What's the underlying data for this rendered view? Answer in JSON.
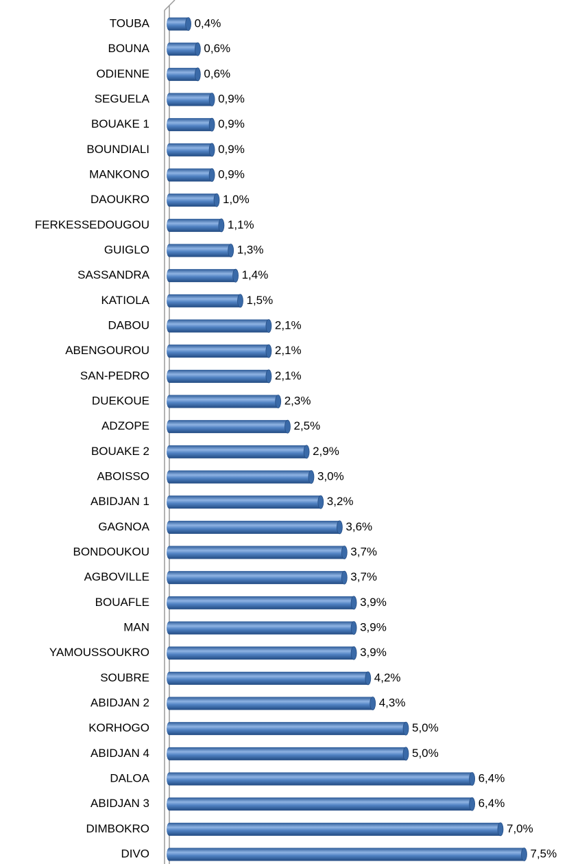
{
  "chart_data": {
    "type": "bar",
    "orientation": "horizontal",
    "color": "#4a7ebb",
    "categories": [
      "TOUBA",
      "BOUNA",
      "ODIENNE",
      "SEGUELA",
      "BOUAKE 1",
      "BOUNDIALI",
      "MANKONO",
      "DAOUKRO",
      "FERKESSEDOUGOU",
      "GUIGLO",
      "SASSANDRA",
      "KATIOLA",
      "DABOU",
      "ABENGOUROU",
      "SAN-PEDRO",
      "DUEKOUE",
      "ADZOPE",
      "BOUAKE 2",
      "ABOISSO",
      "ABIDJAN 1",
      "GAGNOA",
      "BONDOUKOU",
      "AGBOVILLE",
      "BOUAFLE",
      "MAN",
      "YAMOUSSOUKRO",
      "SOUBRE",
      "ABIDJAN 2",
      "KORHOGO",
      "ABIDJAN 4",
      "DALOA",
      "ABIDJAN 3",
      "DIMBOKRO",
      "DIVO"
    ],
    "values": [
      0.4,
      0.6,
      0.6,
      0.9,
      0.9,
      0.9,
      0.9,
      1.0,
      1.1,
      1.3,
      1.4,
      1.5,
      2.1,
      2.1,
      2.1,
      2.3,
      2.5,
      2.9,
      3.0,
      3.2,
      3.6,
      3.7,
      3.7,
      3.9,
      3.9,
      3.9,
      4.2,
      4.3,
      5.0,
      5.0,
      6.4,
      6.4,
      7.0,
      7.5
    ],
    "value_labels": [
      "0,4%",
      "0,6%",
      "0,6%",
      "0,9%",
      "0,9%",
      "0,9%",
      "0,9%",
      "1,0%",
      "1,1%",
      "1,3%",
      "1,4%",
      "1,5%",
      "2,1%",
      "2,1%",
      "2,1%",
      "2,3%",
      "2,5%",
      "2,9%",
      "3,0%",
      "3,2%",
      "3,6%",
      "3,7%",
      "3,7%",
      "3,9%",
      "3,9%",
      "3,9%",
      "4,2%",
      "4,3%",
      "5,0%",
      "5,0%",
      "6,4%",
      "6,4%",
      "7,0%",
      "7,5%"
    ]
  }
}
